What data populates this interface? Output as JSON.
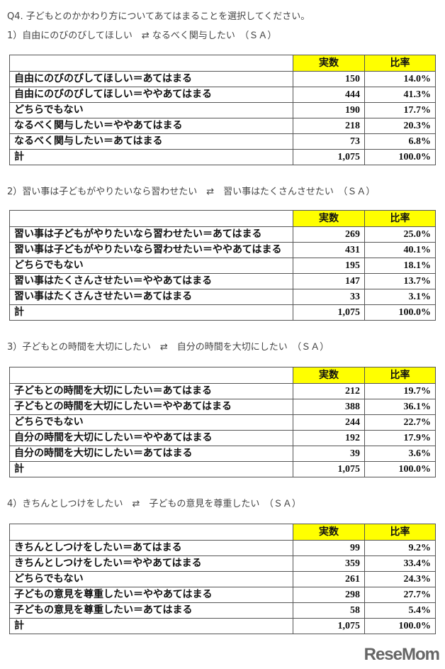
{
  "question": "Q4.  子どもとのかかわり方についてあてはまることを選択してください。",
  "header": {
    "count": "実数",
    "ratio": "比率"
  },
  "sections": [
    {
      "title": "1）自由にのびのびしてほしい　⇄ なるべく関与したい　（ＳＡ）",
      "rows": [
        {
          "label": "自由にのびのびしてほしい＝あてはまる",
          "count": "150",
          "ratio": "14.0%"
        },
        {
          "label": "自由にのびのびしてほしい＝ややあてはまる",
          "count": "444",
          "ratio": "41.3%"
        },
        {
          "label": "どちらでもない",
          "count": "190",
          "ratio": "17.7%"
        },
        {
          "label": "なるべく関与したい＝ややあてはまる",
          "count": "218",
          "ratio": "20.3%"
        },
        {
          "label": "なるべく関与したい＝あてはまる",
          "count": "73",
          "ratio": "6.8%"
        },
        {
          "label": "計",
          "count": "1,075",
          "ratio": "100.0%"
        }
      ]
    },
    {
      "title": "2）習い事は子どもがやりたいなら習わせたい　⇄　習い事はたくさんさせたい　（ＳＡ）",
      "rows": [
        {
          "label": "習い事は子どもがやりたいなら習わせたい＝あてはまる",
          "count": "269",
          "ratio": "25.0%"
        },
        {
          "label": "習い事は子どもがやりたいなら習わせたい＝ややあてはまる",
          "count": "431",
          "ratio": "40.1%"
        },
        {
          "label": "どちらでもない",
          "count": "195",
          "ratio": "18.1%"
        },
        {
          "label": "習い事はたくさんさせたい＝ややあてはまる",
          "count": "147",
          "ratio": "13.7%"
        },
        {
          "label": "習い事はたくさんさせたい＝あてはまる",
          "count": "33",
          "ratio": "3.1%"
        },
        {
          "label": "計",
          "count": "1,075",
          "ratio": "100.0%"
        }
      ]
    },
    {
      "title": "3）子どもとの時間を大切にしたい　⇄　自分の時間を大切にしたい　（ＳＡ）",
      "rows": [
        {
          "label": "子どもとの時間を大切にしたい＝あてはまる",
          "count": "212",
          "ratio": "19.7%"
        },
        {
          "label": "子どもとの時間を大切にしたい＝ややあてはまる",
          "count": "388",
          "ratio": "36.1%"
        },
        {
          "label": "どちらでもない",
          "count": "244",
          "ratio": "22.7%"
        },
        {
          "label": "自分の時間を大切にしたい＝ややあてはまる",
          "count": "192",
          "ratio": "17.9%"
        },
        {
          "label": "自分の時間を大切にしたい＝あてはまる",
          "count": "39",
          "ratio": "3.6%"
        },
        {
          "label": "計",
          "count": "1,075",
          "ratio": "100.0%"
        }
      ]
    },
    {
      "title": "4）きちんとしつけをしたい　⇄　子どもの意見を尊重したい　（ＳＡ）",
      "rows": [
        {
          "label": "きちんとしつけをしたい＝あてはまる",
          "count": "99",
          "ratio": "9.2%"
        },
        {
          "label": "きちんとしつけをしたい＝ややあてはまる",
          "count": "359",
          "ratio": "33.4%"
        },
        {
          "label": "どちらでもない",
          "count": "261",
          "ratio": "24.3%"
        },
        {
          "label": "子どもの意見を尊重したい＝ややあてはまる",
          "count": "298",
          "ratio": "27.7%"
        },
        {
          "label": "子どもの意見を尊重したい＝あてはまる",
          "count": "58",
          "ratio": "5.4%"
        },
        {
          "label": "計",
          "count": "1,075",
          "ratio": "100.0%"
        }
      ]
    }
  ],
  "logo": "ReseMom",
  "highlight_color": "#ffff00"
}
